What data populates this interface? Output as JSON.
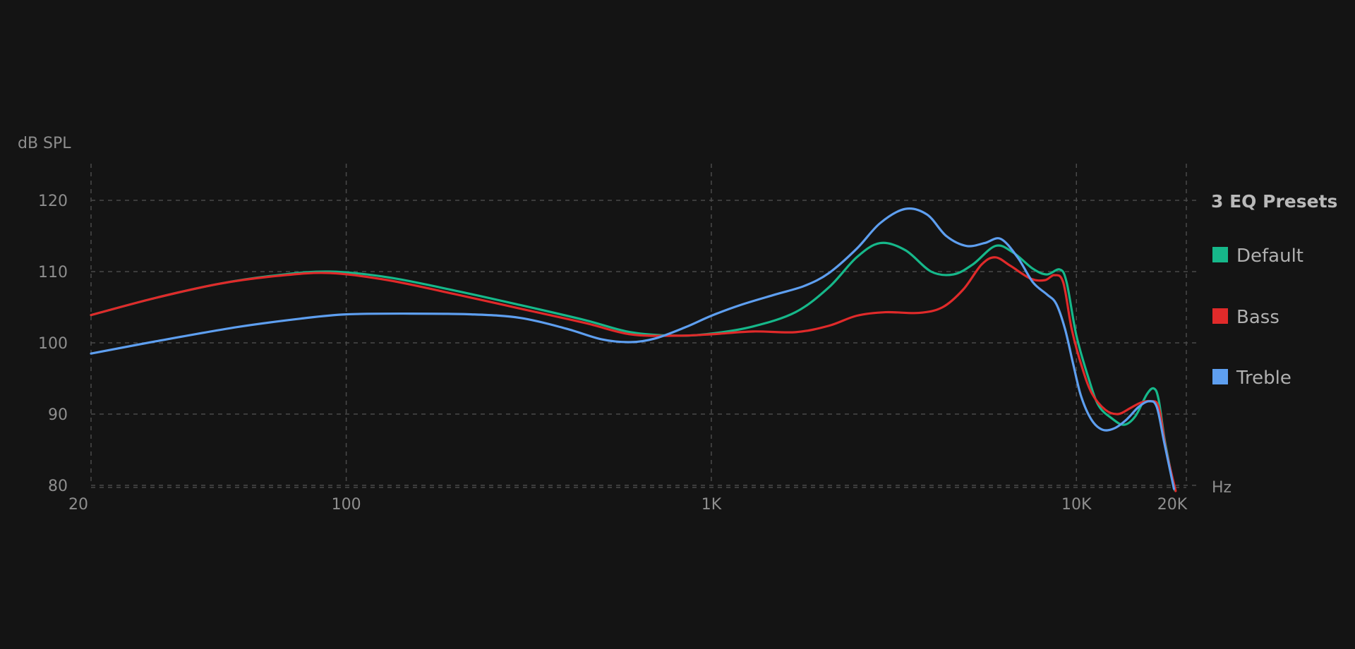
{
  "chart_data": {
    "type": "line",
    "title": "",
    "ylabel": "dB SPL",
    "xlabel": "Hz",
    "x_scale": "log",
    "xlim": [
      20,
      20000
    ],
    "ylim": [
      80,
      120
    ],
    "grid": true,
    "x_ticks": [
      {
        "value": 20,
        "label": "20"
      },
      {
        "value": 100,
        "label": "100"
      },
      {
        "value": 1000,
        "label": "1K"
      },
      {
        "value": 10000,
        "label": "10K"
      },
      {
        "value": 20000,
        "label": "20K"
      }
    ],
    "y_ticks": [
      {
        "value": 80,
        "label": "80"
      },
      {
        "value": 90,
        "label": "90"
      },
      {
        "value": 100,
        "label": "100"
      },
      {
        "value": 110,
        "label": "110"
      },
      {
        "value": 120,
        "label": "120"
      }
    ],
    "legend": {
      "title": "3 EQ Presets",
      "placement": "right"
    },
    "series": [
      {
        "name": "Default",
        "color": "#16b88a",
        "points": [
          [
            20,
            103.9
          ],
          [
            30,
            106.3
          ],
          [
            45,
            108.3
          ],
          [
            65,
            109.5
          ],
          [
            90,
            110.0
          ],
          [
            130,
            109.2
          ],
          [
            200,
            107.3
          ],
          [
            300,
            105.3
          ],
          [
            450,
            103.2
          ],
          [
            600,
            101.5
          ],
          [
            800,
            101.0
          ],
          [
            1000,
            101.3
          ],
          [
            1300,
            102.3
          ],
          [
            1700,
            104.3
          ],
          [
            2100,
            107.8
          ],
          [
            2500,
            112.0
          ],
          [
            2900,
            114.0
          ],
          [
            3400,
            113.0
          ],
          [
            4000,
            110.0
          ],
          [
            4600,
            109.6
          ],
          [
            5200,
            111.0
          ],
          [
            6000,
            113.6
          ],
          [
            6700,
            112.7
          ],
          [
            7600,
            110.4
          ],
          [
            8300,
            109.6
          ],
          [
            9000,
            110.3
          ],
          [
            9400,
            108.5
          ],
          [
            10000,
            101.0
          ],
          [
            10800,
            95.0
          ],
          [
            11500,
            91.2
          ],
          [
            12500,
            89.4
          ],
          [
            13500,
            88.5
          ],
          [
            14500,
            89.7
          ],
          [
            15600,
            92.8
          ],
          [
            16300,
            93.6
          ],
          [
            16800,
            92.0
          ],
          [
            17500,
            86.0
          ],
          [
            18600,
            79.3
          ]
        ]
      },
      {
        "name": "Bass",
        "color": "#e02a2a",
        "points": [
          [
            20,
            103.9
          ],
          [
            30,
            106.3
          ],
          [
            45,
            108.3
          ],
          [
            65,
            109.4
          ],
          [
            90,
            109.8
          ],
          [
            130,
            108.8
          ],
          [
            200,
            106.8
          ],
          [
            300,
            104.8
          ],
          [
            450,
            102.8
          ],
          [
            600,
            101.2
          ],
          [
            800,
            101.0
          ],
          [
            1000,
            101.2
          ],
          [
            1300,
            101.6
          ],
          [
            1700,
            101.5
          ],
          [
            2100,
            102.4
          ],
          [
            2500,
            103.8
          ],
          [
            3000,
            104.3
          ],
          [
            3700,
            104.2
          ],
          [
            4300,
            105.0
          ],
          [
            4900,
            107.5
          ],
          [
            5500,
            111.0
          ],
          [
            6000,
            112.0
          ],
          [
            6600,
            110.8
          ],
          [
            7500,
            109.0
          ],
          [
            8200,
            108.8
          ],
          [
            8700,
            109.5
          ],
          [
            9200,
            108.5
          ],
          [
            9700,
            102.0
          ],
          [
            10300,
            97.0
          ],
          [
            11000,
            93.0
          ],
          [
            12000,
            90.6
          ],
          [
            13000,
            90.0
          ],
          [
            14000,
            90.8
          ],
          [
            15000,
            91.6
          ],
          [
            16000,
            91.8
          ],
          [
            16800,
            91.0
          ],
          [
            17600,
            85.0
          ],
          [
            18700,
            79.2
          ]
        ]
      },
      {
        "name": "Treble",
        "color": "#5e9ff0",
        "points": [
          [
            20,
            98.5
          ],
          [
            30,
            100.2
          ],
          [
            50,
            102.2
          ],
          [
            75,
            103.4
          ],
          [
            100,
            104.0
          ],
          [
            150,
            104.1
          ],
          [
            220,
            104.0
          ],
          [
            300,
            103.5
          ],
          [
            400,
            102.0
          ],
          [
            500,
            100.5
          ],
          [
            600,
            100.1
          ],
          [
            700,
            100.6
          ],
          [
            850,
            102.2
          ],
          [
            1000,
            103.8
          ],
          [
            1200,
            105.3
          ],
          [
            1500,
            106.8
          ],
          [
            1800,
            108.0
          ],
          [
            2100,
            109.8
          ],
          [
            2500,
            113.2
          ],
          [
            2900,
            116.8
          ],
          [
            3400,
            118.8
          ],
          [
            3900,
            118.0
          ],
          [
            4400,
            115.0
          ],
          [
            5000,
            113.6
          ],
          [
            5600,
            114.0
          ],
          [
            6200,
            114.6
          ],
          [
            6900,
            112.0
          ],
          [
            7600,
            108.5
          ],
          [
            8300,
            106.8
          ],
          [
            8800,
            105.5
          ],
          [
            9300,
            102.0
          ],
          [
            9800,
            97.0
          ],
          [
            10300,
            92.5
          ],
          [
            11000,
            89.2
          ],
          [
            11800,
            87.8
          ],
          [
            12700,
            88.0
          ],
          [
            13700,
            89.2
          ],
          [
            14800,
            91.0
          ],
          [
            15800,
            91.8
          ],
          [
            16600,
            91.0
          ],
          [
            17400,
            86.0
          ],
          [
            18500,
            79.5
          ]
        ]
      }
    ]
  }
}
